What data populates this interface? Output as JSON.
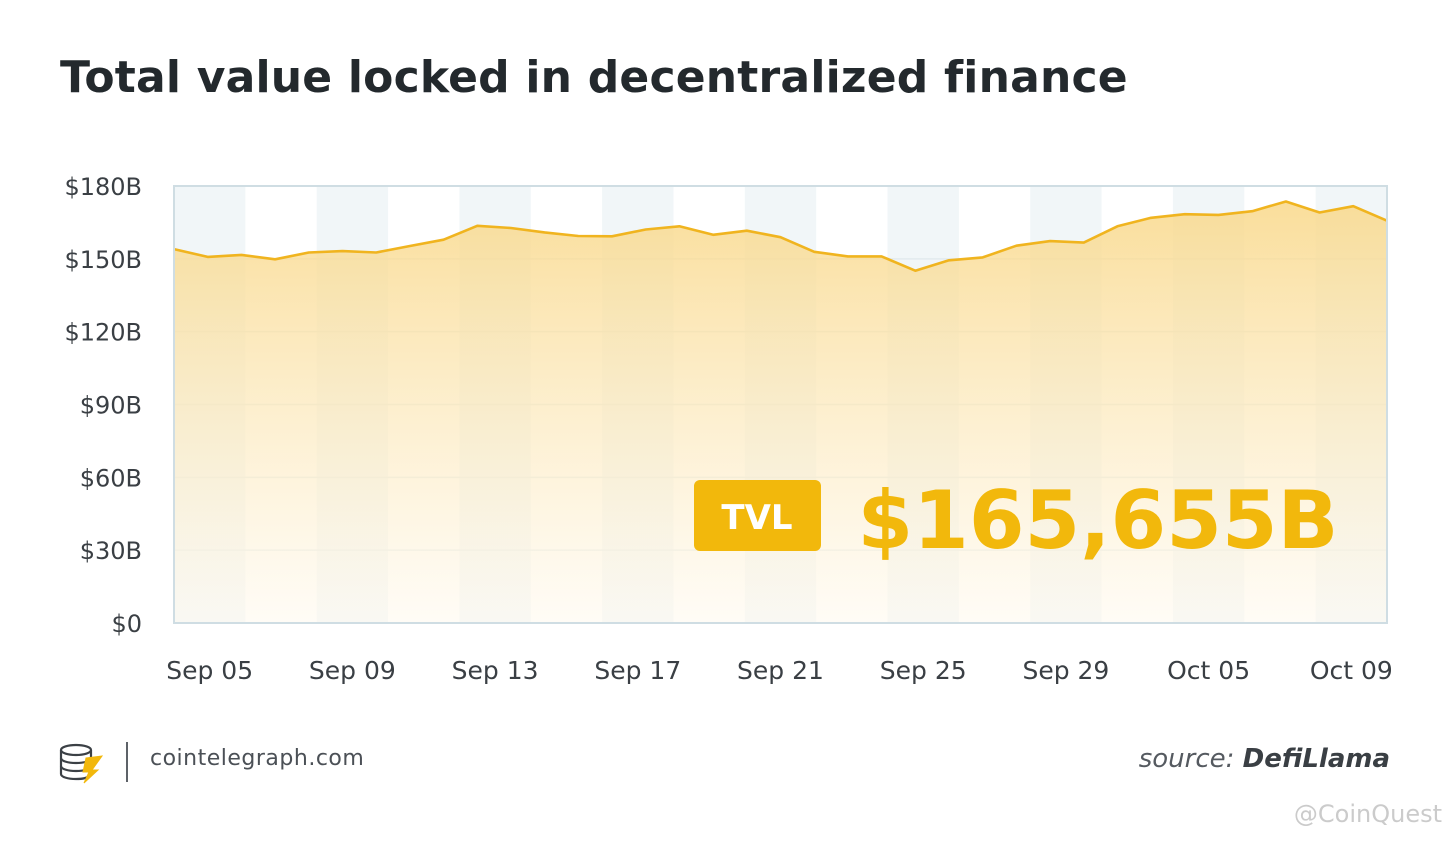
{
  "title": "Total value locked in decentralized finance",
  "chart_data": {
    "type": "area",
    "x_ticks": [
      "Sep 05",
      "Sep 09",
      "Sep 13",
      "Sep 17",
      "Sep 21",
      "Sep 25",
      "Sep 29",
      "Oct 05",
      "Oct 09"
    ],
    "y_ticks": [
      "$0",
      "$30B",
      "$60B",
      "$90B",
      "$120B",
      "$150B",
      "$180B"
    ],
    "ylim": [
      0,
      180
    ],
    "grid": true,
    "colors": {
      "line": "#f0b41f",
      "fill_top": "#f9d889",
      "fill_bottom": "#fffaf0",
      "band": "#f1f6f8",
      "badge": "#f2b80c",
      "accent": "#f2b80c"
    },
    "series": [
      {
        "values": [
          154,
          150.8,
          151.6,
          149.8,
          152.6,
          153.2,
          152.6,
          155.3,
          157.9,
          163.6,
          162.7,
          160.9,
          159.4,
          159.3,
          162.1,
          163.4,
          159.9,
          161.6,
          158.9,
          152.9,
          151.0,
          151.0,
          145.1,
          149.4,
          150.6,
          155.4,
          157.3,
          156.7,
          163.4,
          166.9,
          168.4,
          168.1,
          169.6,
          173.6,
          169.1,
          171.7,
          165.7
        ]
      }
    ],
    "annotation": {
      "label": "TVL",
      "value": "$165,655B"
    }
  },
  "footer": {
    "site": "cointelegraph.com",
    "source_prefix": "source:",
    "source_name": "DefiLlama",
    "logo_icon": "cointelegraph-logo-icon"
  },
  "watermark": "@CoinQuest"
}
